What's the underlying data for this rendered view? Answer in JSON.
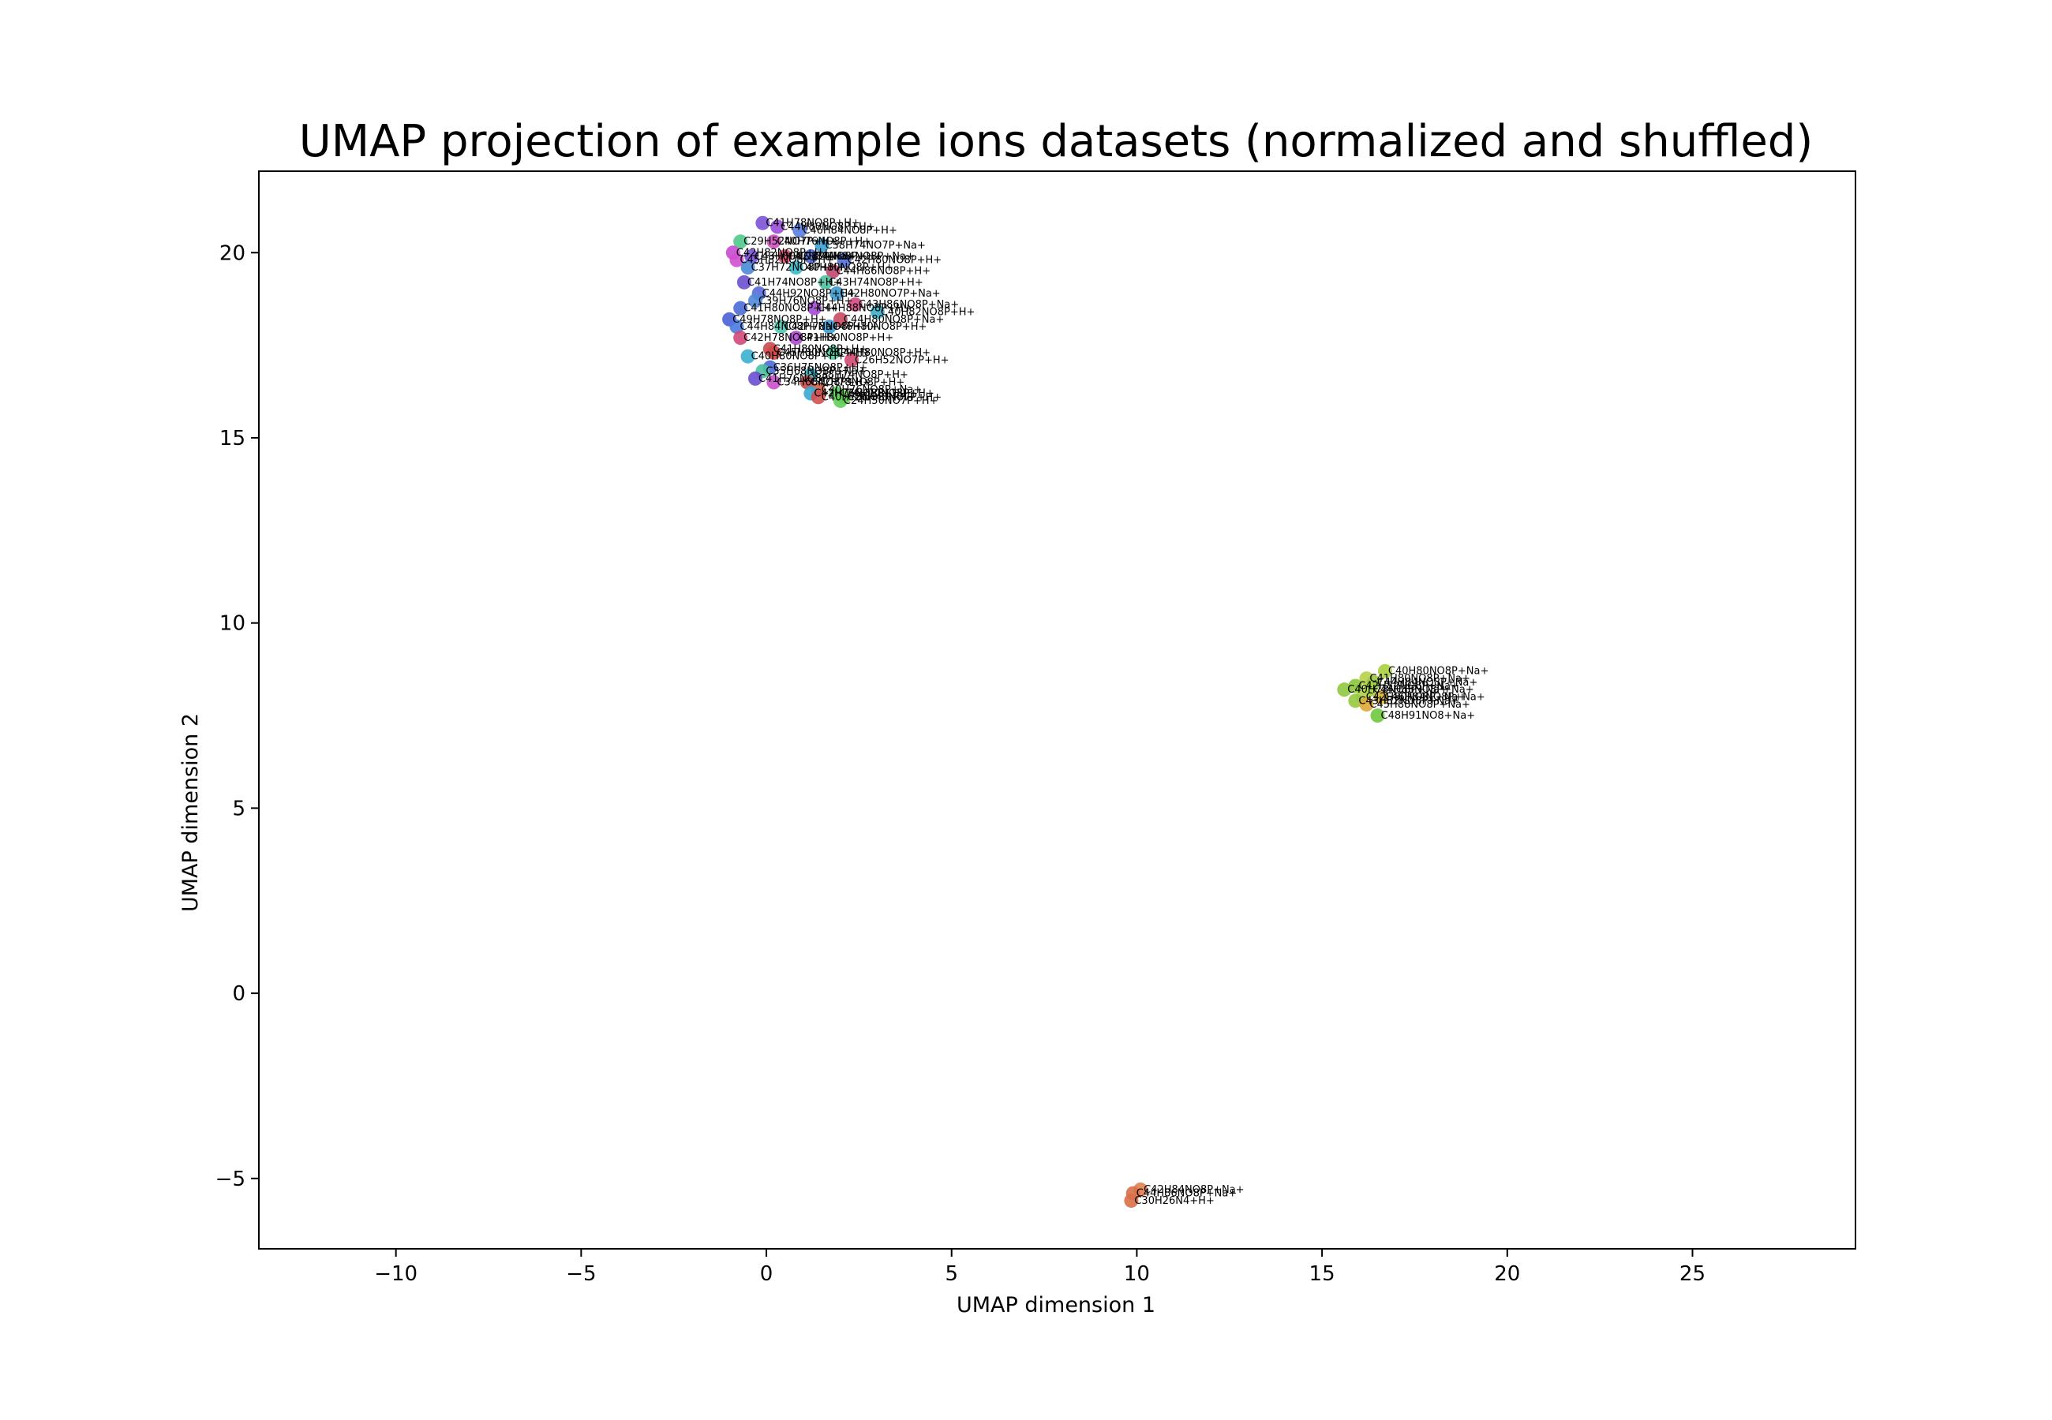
{
  "chart_data": {
    "type": "scatter",
    "title": "UMAP projection of example ions datasets (normalized and shuffled)",
    "xlabel": "UMAP dimension 1",
    "ylabel": "UMAP dimension 2",
    "xlim": [
      -13.7,
      29.4
    ],
    "ylim": [
      -6.9,
      22.2
    ],
    "xticks": [
      -10,
      -5,
      0,
      5,
      10,
      15,
      20,
      25
    ],
    "yticks": [
      -5,
      0,
      5,
      10,
      15,
      20
    ],
    "xtick_labels": [
      "−10",
      "−5",
      "0",
      "5",
      "10",
      "15",
      "20",
      "25"
    ],
    "ytick_labels": [
      "−5",
      "0",
      "5",
      "10",
      "15",
      "20"
    ],
    "grid": false,
    "points": [
      {
        "x": -0.1,
        "y": 20.8,
        "label": "C41H78NO8P+H+",
        "color": "#7b52d6"
      },
      {
        "x": 0.3,
        "y": 20.7,
        "label": "C44H80NO8P+H+",
        "color": "#9a4fd8"
      },
      {
        "x": 0.9,
        "y": 20.6,
        "label": "C46H84NO8P+H+",
        "color": "#5a7ee0"
      },
      {
        "x": -0.7,
        "y": 20.3,
        "label": "C29H52NO7P+H+",
        "color": "#4fc98a"
      },
      {
        "x": 0.2,
        "y": 20.3,
        "label": "C40H76NO8P+H+",
        "color": "#d04fc0"
      },
      {
        "x": 1.5,
        "y": 20.2,
        "label": "C38H74NO7P+Na+",
        "color": "#3aa0d0"
      },
      {
        "x": -0.9,
        "y": 20.0,
        "label": "C42H82NO8P+H+",
        "color": "#c84ad0"
      },
      {
        "x": -0.4,
        "y": 19.9,
        "label": "C43H80NO8P+Na+",
        "color": "#7a50d8"
      },
      {
        "x": 0.5,
        "y": 19.9,
        "label": "C42H84NO8P+H+",
        "color": "#e05070"
      },
      {
        "x": 1.2,
        "y": 19.9,
        "label": "C44H84NO8P+Na+",
        "color": "#4a6ad8"
      },
      {
        "x": -0.8,
        "y": 19.8,
        "label": "C45H82NO8P+H+",
        "color": "#d050d0"
      },
      {
        "x": 2.1,
        "y": 19.8,
        "label": "C42H80NO8P+H+",
        "color": "#5070d8"
      },
      {
        "x": -0.5,
        "y": 19.6,
        "label": "C37H72NO8P+H+",
        "color": "#4a8ad8"
      },
      {
        "x": 0.8,
        "y": 19.6,
        "label": "C40H80NO8P+H+",
        "color": "#3ab8c8"
      },
      {
        "x": 1.8,
        "y": 19.5,
        "label": "C44H86NO8P+H+",
        "color": "#c04870"
      },
      {
        "x": -0.6,
        "y": 19.2,
        "label": "C41H74NO8P+H+",
        "color": "#6a4fd0"
      },
      {
        "x": 1.6,
        "y": 19.2,
        "label": "C43H74NO8P+H+",
        "color": "#4fc0a0"
      },
      {
        "x": -0.2,
        "y": 18.9,
        "label": "C44H92NO8P+H+",
        "color": "#5a6ad8"
      },
      {
        "x": 1.9,
        "y": 18.9,
        "label": "C42H80NO7P+Na+",
        "color": "#3a9ad0"
      },
      {
        "x": -0.3,
        "y": 18.7,
        "label": "C39H76NO8P+H+",
        "color": "#5088d8"
      },
      {
        "x": 2.4,
        "y": 18.6,
        "label": "C43H86NO8P+Na+",
        "color": "#d04a80"
      },
      {
        "x": -0.7,
        "y": 18.5,
        "label": "C41H80NO8P+H+",
        "color": "#4a6ad8"
      },
      {
        "x": 1.3,
        "y": 18.5,
        "label": "C44H88NO8P+H+",
        "color": "#a04ad0"
      },
      {
        "x": 3.0,
        "y": 18.4,
        "label": "C40H82NO8P+H+",
        "color": "#3ab0c8"
      },
      {
        "x": -1.0,
        "y": 18.2,
        "label": "C49H78NO8P+H+",
        "color": "#4a60d8"
      },
      {
        "x": 2.0,
        "y": 18.2,
        "label": "C44H80NO8P+Na+",
        "color": "#c84a60"
      },
      {
        "x": -0.8,
        "y": 18.0,
        "label": "C44H84NO8P+Na+",
        "color": "#4a7ae0"
      },
      {
        "x": 0.4,
        "y": 18.0,
        "label": "C42H78NO8P+H+",
        "color": "#50c8b0"
      },
      {
        "x": 1.7,
        "y": 18.0,
        "label": "C46H80NO8P+H+",
        "color": "#3a9ad0"
      },
      {
        "x": -0.7,
        "y": 17.7,
        "label": "C42H78NO8P+H+",
        "color": "#d04878"
      },
      {
        "x": 0.8,
        "y": 17.7,
        "label": "C41H80NO8P+H+",
        "color": "#b04ad0"
      },
      {
        "x": 0.1,
        "y": 17.4,
        "label": "C41H80NO8P+H+",
        "color": "#c84a50"
      },
      {
        "x": 0.2,
        "y": 17.3,
        "label": "C45H80NO8P+H+",
        "color": "#d04a48"
      },
      {
        "x": 1.8,
        "y": 17.3,
        "label": "C44H80NO8P+H+",
        "color": "#4ac8a0"
      },
      {
        "x": -0.5,
        "y": 17.2,
        "label": "C40H80NO8P+H+",
        "color": "#3ab0d0"
      },
      {
        "x": 2.3,
        "y": 17.1,
        "label": "C26H52NO7P+H+",
        "color": "#d04a70"
      },
      {
        "x": 0.1,
        "y": 16.9,
        "label": "C36H75NO8P+H+",
        "color": "#4a6ad8"
      },
      {
        "x": -0.1,
        "y": 16.8,
        "label": "C35H68NO8P+Na+",
        "color": "#4ac0a0"
      },
      {
        "x": 1.2,
        "y": 16.7,
        "label": "C38H74NO8P+H+",
        "color": "#3ab8c8"
      },
      {
        "x": -0.3,
        "y": 16.6,
        "label": "C41H76NO8P+H+",
        "color": "#6a4fd0"
      },
      {
        "x": 1.1,
        "y": 16.5,
        "label": "C42H78NO8P+H+",
        "color": "#c84a48"
      },
      {
        "x": 0.2,
        "y": 16.5,
        "label": "C34H68NO8P+H+",
        "color": "#c850c8"
      },
      {
        "x": 1.4,
        "y": 16.3,
        "label": "C40H76NO8P+Na+",
        "color": "#d06048"
      },
      {
        "x": 1.2,
        "y": 16.2,
        "label": "C42H76NO8P+H+",
        "color": "#3aa8d0"
      },
      {
        "x": 1.9,
        "y": 16.2,
        "label": "C36H70NO8P+H+",
        "color": "#5ad060"
      },
      {
        "x": 2.1,
        "y": 16.1,
        "label": "C26H48NO7P+H+",
        "color": "#6ad050"
      },
      {
        "x": 1.4,
        "y": 16.1,
        "label": "C40H78NO8P+H+",
        "color": "#d05050"
      },
      {
        "x": 2.0,
        "y": 16.0,
        "label": "C24H50NO7P+H+",
        "color": "#60d058"
      },
      {
        "x": 16.7,
        "y": 8.7,
        "label": "C40H80NO8P+Na+",
        "color": "#a8d040"
      },
      {
        "x": 16.2,
        "y": 8.5,
        "label": "C41H80NO8P+Na+",
        "color": "#b8d048"
      },
      {
        "x": 16.4,
        "y": 8.4,
        "label": "C44H84NO8P+Na+",
        "color": "#98c840"
      },
      {
        "x": 15.9,
        "y": 8.3,
        "label": "C42H82NO8P+Na+",
        "color": "#88c838"
      },
      {
        "x": 16.3,
        "y": 8.2,
        "label": "C44H86NO8P+Na+",
        "color": "#a0d040"
      },
      {
        "x": 15.6,
        "y": 8.2,
        "label": "C40H78NO8P+Na+",
        "color": "#90c840"
      },
      {
        "x": 16.1,
        "y": 8.0,
        "label": "C42H80NO8P+Na+",
        "color": "#b0d048"
      },
      {
        "x": 16.6,
        "y": 8.0,
        "label": "C46H84NO8P+Na+",
        "color": "#d8b038"
      },
      {
        "x": 15.9,
        "y": 7.9,
        "label": "C43H82NO8P+Na+",
        "color": "#98c840"
      },
      {
        "x": 16.2,
        "y": 7.8,
        "label": "C45H88NO8P+Na+",
        "color": "#e0a838"
      },
      {
        "x": 16.5,
        "y": 7.5,
        "label": "C48H91NO8+Na+",
        "color": "#70c840"
      },
      {
        "x": 10.1,
        "y": -5.3,
        "label": "C42H84NO8P+Na+",
        "color": "#e08050"
      },
      {
        "x": 9.9,
        "y": -5.4,
        "label": "C44H86NO8P+Na+",
        "color": "#d87048"
      },
      {
        "x": 9.85,
        "y": -5.6,
        "label": "C30H26N4+H+",
        "color": "#d87048"
      }
    ]
  }
}
